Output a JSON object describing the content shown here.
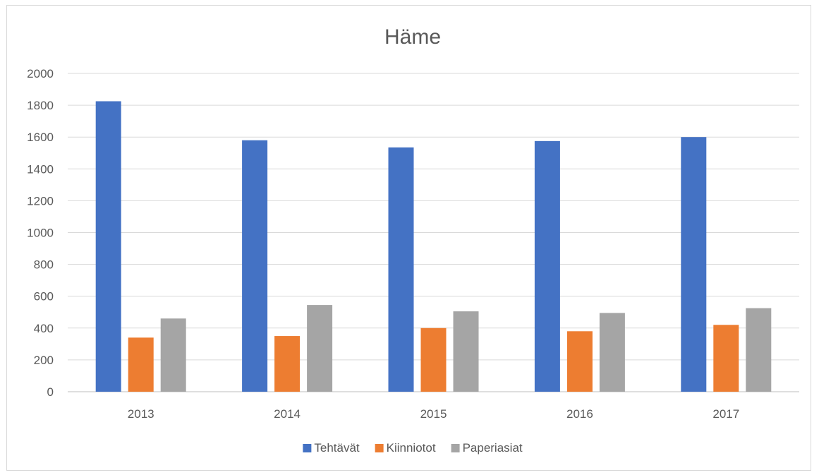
{
  "chart_data": {
    "type": "bar",
    "title": "Häme",
    "categories": [
      "2013",
      "2014",
      "2015",
      "2016",
      "2017"
    ],
    "series": [
      {
        "name": "Tehtävät",
        "color": "#4472c4",
        "values": [
          1825,
          1580,
          1535,
          1575,
          1600
        ]
      },
      {
        "name": "Kiinniotot",
        "color": "#ed7d31",
        "values": [
          340,
          350,
          400,
          380,
          420
        ]
      },
      {
        "name": "Paperiasiat",
        "color": "#a5a5a5",
        "values": [
          460,
          545,
          505,
          495,
          525
        ]
      }
    ],
    "ylim": [
      0,
      2000
    ],
    "yticks": [
      "0",
      "200",
      "400",
      "600",
      "800",
      "1000",
      "1200",
      "1400",
      "1600",
      "1800",
      "2000"
    ],
    "grid": true,
    "legend_position": "bottom"
  }
}
